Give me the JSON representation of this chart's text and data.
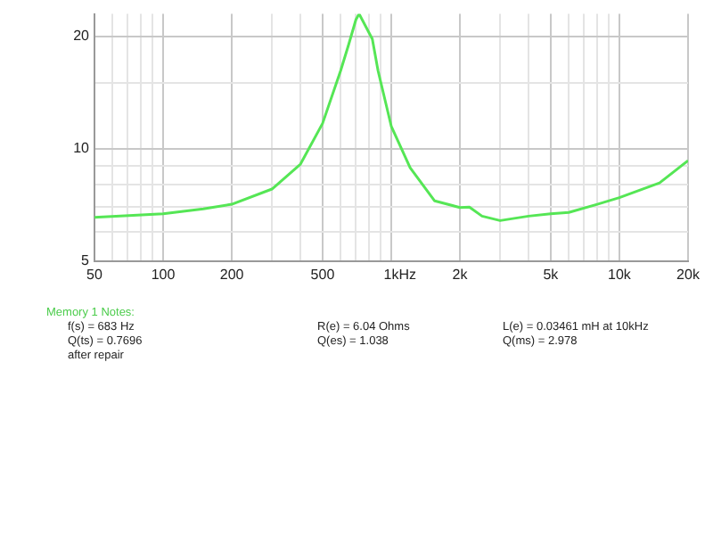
{
  "chart_data": {
    "type": "line",
    "log": "xy",
    "grid": true,
    "legend": false,
    "marker": "none",
    "line_style": "solid",
    "xlim": [
      50,
      20000
    ],
    "xlabel": "Hz",
    "ylim": [
      5,
      23
    ],
    "xticks": [
      50,
      {
        "value": 60,
        "label": null
      },
      {
        "value": 70,
        "label": null
      },
      {
        "value": 80,
        "label": null
      },
      {
        "value": 90,
        "label": null
      },
      100,
      200,
      {
        "value": 300,
        "label": null
      },
      {
        "value": 400,
        "label": null
      },
      500,
      {
        "value": 600,
        "label": null
      },
      {
        "value": 700,
        "label": null
      },
      {
        "value": 800,
        "label": null
      },
      {
        "value": 900,
        "label": null
      },
      {
        "value": 1000,
        "label": "1k"
      },
      {
        "value": 2000,
        "label": "2k"
      },
      {
        "value": 3000,
        "label": null
      },
      {
        "value": 4000,
        "label": null
      },
      {
        "value": 5000,
        "label": "5k"
      },
      {
        "value": 6000,
        "label": null
      },
      {
        "value": 7000,
        "label": null
      },
      {
        "value": 8000,
        "label": null
      },
      {
        "value": 9000,
        "label": null
      },
      {
        "value": 10000,
        "label": "10k"
      },
      {
        "value": 20000,
        "label": "20k"
      }
    ],
    "yticks": [
      5,
      {
        "value": 6,
        "label": null
      },
      {
        "value": 7,
        "label": null
      },
      {
        "value": 8,
        "label": null
      },
      {
        "value": 9,
        "label": null
      },
      10,
      {
        "value": 15,
        "label": null
      },
      20
    ],
    "series": [
      {
        "color": "#55e655",
        "x": [
          50,
          100,
          150,
          200,
          300,
          400,
          500,
          600,
          650,
          700,
          723,
          826,
          875,
          1000,
          1210,
          1550,
          2000,
          2200,
          2500,
          3000,
          4000,
          5000,
          6000,
          8000,
          10000,
          15000,
          20000
        ],
        "values": [
          6.55,
          6.7,
          6.9,
          7.1,
          7.8,
          9.1,
          11.7,
          16.2,
          19.0,
          22.2,
          23,
          19.7,
          16.2,
          11.5,
          8.9,
          7.25,
          6.96,
          6.98,
          6.6,
          6.42,
          6.6,
          6.7,
          6.75,
          7.1,
          7.4,
          8.1,
          9.3
        ]
      }
    ],
    "annotations": [
      "Memory 1 Notes:",
      "f(s) = 683 Hz",
      "R(e) = 6.04 Ohms",
      "L(e) = 0.03461 mH at 10kHz",
      "Q(ts) = 0.7696",
      "Q(es) = 1.038",
      "Q(ms) = 2.978",
      "after repair"
    ]
  }
}
